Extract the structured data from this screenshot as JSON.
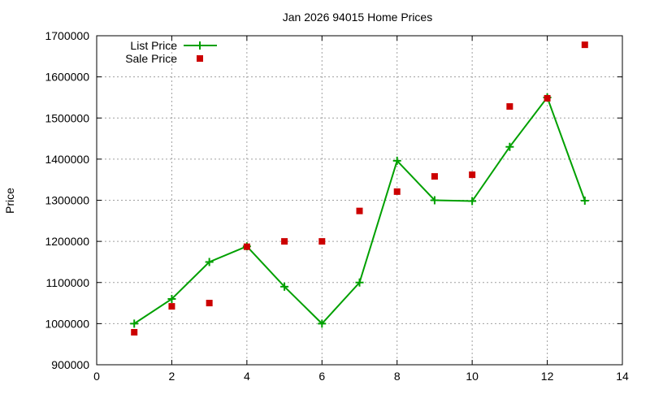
{
  "chart_data": {
    "type": "line",
    "title": "Jan 2026 94015 Home Prices",
    "xlabel": "",
    "ylabel": "Price",
    "xlim": [
      0,
      14
    ],
    "ylim": [
      900000,
      1700000
    ],
    "xticks": [
      0,
      2,
      4,
      6,
      8,
      10,
      12,
      14
    ],
    "yticks": [
      900000,
      1000000,
      1100000,
      1200000,
      1300000,
      1400000,
      1500000,
      1600000,
      1700000
    ],
    "grid": true,
    "legend_position": "top-left",
    "series": [
      {
        "name": "List Price",
        "style": "linespoints",
        "marker": "plus",
        "color": "#00a000",
        "x": [
          1,
          2,
          3,
          4,
          5,
          6,
          7,
          8,
          9,
          10,
          11,
          12,
          13
        ],
        "values": [
          1000000,
          1060000,
          1150000,
          1188000,
          1090000,
          1000000,
          1100000,
          1396000,
          1300000,
          1298000,
          1430000,
          1550000,
          1299000
        ]
      },
      {
        "name": "Sale Price",
        "style": "points",
        "marker": "square",
        "color": "#cc0000",
        "x": [
          1,
          2,
          3,
          4,
          5,
          6,
          7,
          8,
          9,
          10,
          11,
          12,
          13
        ],
        "values": [
          979000,
          1042000,
          1050000,
          1187000,
          1200000,
          1200000,
          1274000,
          1321000,
          1358000,
          1362000,
          1528000,
          1548000,
          1678000
        ]
      }
    ]
  }
}
